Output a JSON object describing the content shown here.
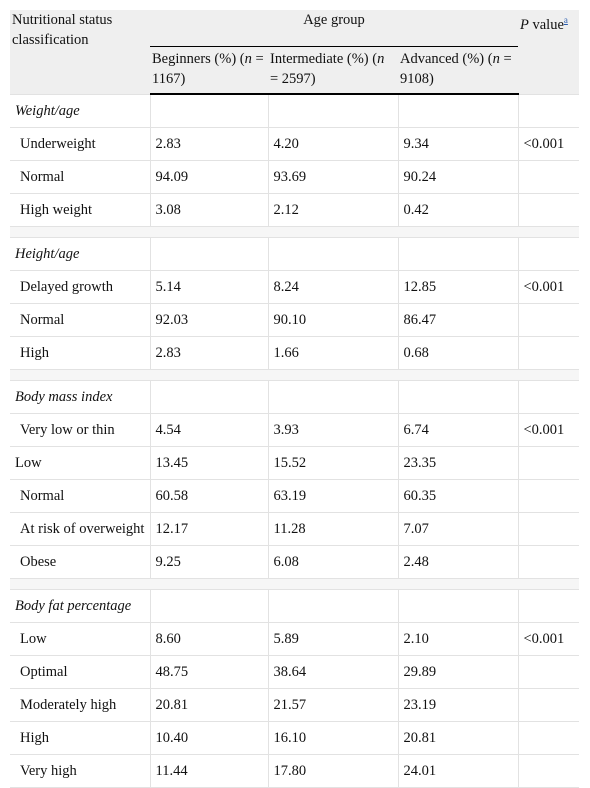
{
  "table": {
    "header": {
      "label": "Nutritional status classification",
      "group": "Age group",
      "p": {
        "italic": "P",
        "text": " value",
        "sup": "a"
      },
      "columns": [
        {
          "text": "Beginners (%) (",
          "italic": "n",
          "rest": " = 1167)"
        },
        {
          "text": "Intermediate (%) (",
          "italic": "n",
          "rest": " = 2597)"
        },
        {
          "text": "Advanced (%) (",
          "italic": "n",
          "rest": " = 9108)"
        }
      ]
    },
    "sections": [
      {
        "title": "Weight/age",
        "rows": [
          {
            "label": "Underweight",
            "values": [
              "2.83",
              "4.20",
              "9.34"
            ],
            "p": "<0.001"
          },
          {
            "label": "Normal",
            "values": [
              "94.09",
              "93.69",
              "90.24"
            ]
          },
          {
            "label": "High weight",
            "values": [
              "3.08",
              "2.12",
              "0.42"
            ]
          }
        ]
      },
      {
        "title": "Height/age",
        "rows": [
          {
            "label": "Delayed growth",
            "values": [
              "5.14",
              "8.24",
              "12.85"
            ],
            "p": "<0.001"
          },
          {
            "label": "Normal",
            "values": [
              "92.03",
              "90.10",
              "86.47"
            ]
          },
          {
            "label": "High",
            "values": [
              "2.83",
              "1.66",
              "0.68"
            ]
          }
        ]
      },
      {
        "title": "Body mass index",
        "rows": [
          {
            "label": "Very low or thin",
            "values": [
              "4.54",
              "3.93",
              "6.74"
            ],
            "p": "<0.001"
          },
          {
            "label": "Low",
            "values": [
              "13.45",
              "15.52",
              "23.35"
            ],
            "flush": true
          },
          {
            "label": "Normal",
            "values": [
              "60.58",
              "63.19",
              "60.35"
            ]
          },
          {
            "label": "At risk of overweight",
            "values": [
              "12.17",
              "11.28",
              "7.07"
            ]
          },
          {
            "label": "Obese",
            "values": [
              "9.25",
              "6.08",
              "2.48"
            ]
          }
        ]
      },
      {
        "title": "Body fat percentage",
        "rows": [
          {
            "label": "Low",
            "values": [
              "8.60",
              "5.89",
              "2.10"
            ],
            "p": "<0.001"
          },
          {
            "label": "Optimal",
            "values": [
              "48.75",
              "38.64",
              "29.89"
            ]
          },
          {
            "label": "Moderately high",
            "values": [
              "20.81",
              "21.57",
              "23.19"
            ]
          },
          {
            "label": "High",
            "values": [
              "10.40",
              "16.10",
              "20.81"
            ]
          },
          {
            "label": "Very high",
            "values": [
              "11.44",
              "17.80",
              "24.01"
            ]
          }
        ]
      }
    ]
  }
}
